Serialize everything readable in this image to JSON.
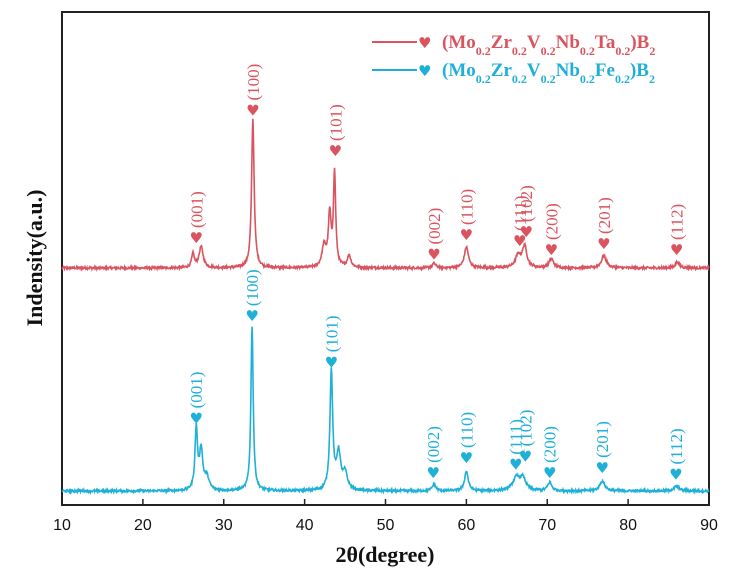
{
  "chart_data": {
    "type": "line",
    "title": "",
    "xlabel": "2θ(degree)",
    "ylabel": "Indensity(a.u.)",
    "xlim": [
      10,
      90
    ],
    "xticks": [
      10,
      20,
      30,
      40,
      50,
      60,
      70,
      80,
      90
    ],
    "yticks_shown": false,
    "legend_position": "top-right",
    "series": [
      {
        "name": "(Mo0.2Zr0.2V0.2Nb0.2Ta0.2)B2",
        "color": "#d9545f",
        "legend_parts": [
          [
            "(Mo",
            ""
          ],
          [
            "0.2",
            "sub"
          ],
          [
            "Zr",
            ""
          ],
          [
            "0.2",
            "sub"
          ],
          [
            "V",
            ""
          ],
          [
            "0.2",
            "sub"
          ],
          [
            "Nb",
            ""
          ],
          [
            "0.2",
            "sub"
          ],
          [
            "Ta",
            ""
          ],
          [
            "0.2",
            "sub"
          ],
          [
            ")B",
            ""
          ],
          [
            "2",
            "sub"
          ]
        ],
        "baseline": 0.0,
        "noise": 0.008,
        "peaks": [
          {
            "x": 26.2,
            "h": 0.09,
            "w": 0.3
          },
          {
            "x": 27.2,
            "h": 0.14,
            "w": 0.45
          },
          {
            "x": 33.6,
            "h": 0.99,
            "w": 0.28
          },
          {
            "x": 42.4,
            "h": 0.14,
            "w": 0.45
          },
          {
            "x": 43.1,
            "h": 0.34,
            "w": 0.3
          },
          {
            "x": 43.7,
            "h": 0.62,
            "w": 0.25
          },
          {
            "x": 45.5,
            "h": 0.08,
            "w": 0.4
          },
          {
            "x": 56.0,
            "h": 0.03,
            "w": 0.4
          },
          {
            "x": 60.0,
            "h": 0.14,
            "w": 0.45
          },
          {
            "x": 66.4,
            "h": 0.08,
            "w": 0.6
          },
          {
            "x": 67.2,
            "h": 0.14,
            "w": 0.5
          },
          {
            "x": 70.5,
            "h": 0.06,
            "w": 0.5
          },
          {
            "x": 77.0,
            "h": 0.08,
            "w": 0.55
          },
          {
            "x": 86.1,
            "h": 0.04,
            "w": 0.45
          }
        ],
        "peak_labels": [
          {
            "label": "(001)",
            "x": 26.6,
            "y": 0.2
          },
          {
            "label": "(100)",
            "x": 33.6,
            "y": 1.05
          },
          {
            "label": "(101)",
            "x": 43.8,
            "y": 0.78
          },
          {
            "label": "(002)",
            "x": 56.0,
            "y": 0.09
          },
          {
            "label": "(110)",
            "x": 60.0,
            "y": 0.22
          },
          {
            "label": "(111)",
            "x": 66.6,
            "y": 0.18
          },
          {
            "label": "(102)",
            "x": 67.4,
            "y": 0.24
          },
          {
            "label": "(200)",
            "x": 70.5,
            "y": 0.12
          },
          {
            "label": "(201)",
            "x": 77.0,
            "y": 0.16
          },
          {
            "label": "(112)",
            "x": 86.0,
            "y": 0.12
          }
        ]
      },
      {
        "name": "(Mo0.2Zr0.2V0.2Nb0.2Fe0.2)B2",
        "color": "#1fb0d8",
        "legend_parts": [
          [
            "(Mo",
            ""
          ],
          [
            "0.2",
            "sub"
          ],
          [
            "Zr",
            ""
          ],
          [
            "0.2",
            "sub"
          ],
          [
            "V",
            ""
          ],
          [
            "0.2",
            "sub"
          ],
          [
            "Nb",
            ""
          ],
          [
            "0.2",
            "sub"
          ],
          [
            "Fe",
            ""
          ],
          [
            "0.2",
            "sub"
          ],
          [
            ")B",
            ""
          ],
          [
            "2",
            "sub"
          ]
        ],
        "baseline": 0.0,
        "noise": 0.007,
        "peaks": [
          {
            "x": 26.6,
            "h": 0.37,
            "w": 0.28
          },
          {
            "x": 27.2,
            "h": 0.24,
            "w": 0.35
          },
          {
            "x": 27.9,
            "h": 0.08,
            "w": 0.5
          },
          {
            "x": 33.5,
            "h": 1.0,
            "w": 0.25
          },
          {
            "x": 43.3,
            "h": 0.72,
            "w": 0.3
          },
          {
            "x": 44.2,
            "h": 0.22,
            "w": 0.45
          },
          {
            "x": 45.0,
            "h": 0.1,
            "w": 0.5
          },
          {
            "x": 56.0,
            "h": 0.04,
            "w": 0.4
          },
          {
            "x": 60.0,
            "h": 0.12,
            "w": 0.4
          },
          {
            "x": 66.2,
            "h": 0.08,
            "w": 0.8
          },
          {
            "x": 67.0,
            "h": 0.07,
            "w": 0.6
          },
          {
            "x": 70.3,
            "h": 0.05,
            "w": 0.45
          },
          {
            "x": 76.8,
            "h": 0.06,
            "w": 0.55
          },
          {
            "x": 86.0,
            "h": 0.03,
            "w": 0.55
          }
        ],
        "peak_labels": [
          {
            "label": "(001)",
            "x": 26.6,
            "y": 0.44
          },
          {
            "label": "(100)",
            "x": 33.5,
            "y": 1.06
          },
          {
            "label": "(101)",
            "x": 43.3,
            "y": 0.78
          },
          {
            "label": "(002)",
            "x": 55.9,
            "y": 0.11
          },
          {
            "label": "(110)",
            "x": 60.0,
            "y": 0.2
          },
          {
            "label": "(111)",
            "x": 66.1,
            "y": 0.16
          },
          {
            "label": "(102)",
            "x": 67.3,
            "y": 0.21
          },
          {
            "label": "(200)",
            "x": 70.3,
            "y": 0.11
          },
          {
            "label": "(201)",
            "x": 76.8,
            "y": 0.14
          },
          {
            "label": "(112)",
            "x": 85.9,
            "y": 0.1
          }
        ]
      }
    ]
  }
}
